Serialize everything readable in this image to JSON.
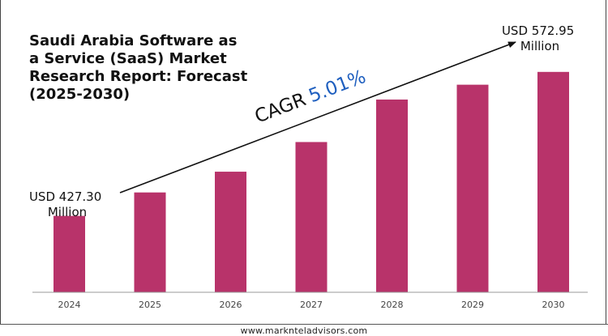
{
  "chart_data": {
    "type": "bar",
    "title": "Saudi Arabia Software as a Service (SaaS) Market Research Report: Forecast (2025-2030)",
    "categories": [
      "2024",
      "2025",
      "2026",
      "2027",
      "2028",
      "2029",
      "2030"
    ],
    "values": [
      427.3,
      451,
      472,
      502,
      545,
      560,
      572.95
    ],
    "unit": "USD Million",
    "ylim": [
      350,
      590
    ],
    "bar_color": "#b8336a",
    "start_label": [
      "USD 427.30",
      "Million"
    ],
    "end_label": [
      "USD 572.95",
      "Million"
    ],
    "cagr_label": "CAGR",
    "cagr_value": "5.01%",
    "cagr_value_color": "#1f5fbf"
  },
  "footer": "www.marknteladvisors.com"
}
